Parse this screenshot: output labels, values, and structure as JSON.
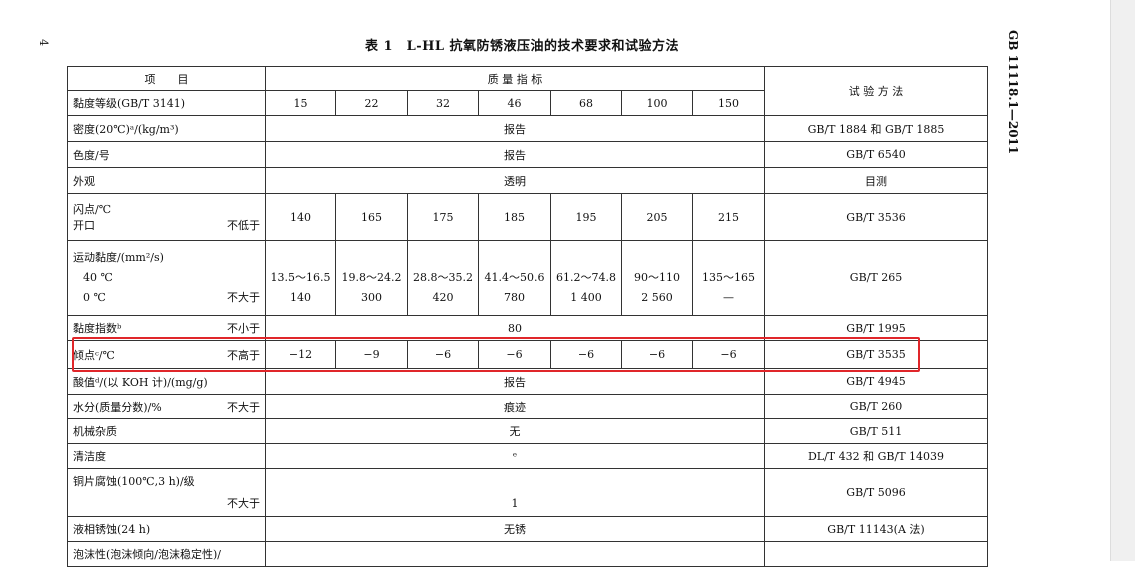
{
  "page_number": "4",
  "title": "表 1　L-HL 抗氧防锈液压油的技术要求和试验方法",
  "standard_id": "GB 11118.1—2011",
  "header": {
    "item": "项　　目",
    "quality": "质 量 指 标",
    "method": "试 验 方 法"
  },
  "grades_label": "黏度等级(GB/T 3141)",
  "grades": [
    "15",
    "22",
    "32",
    "46",
    "68",
    "100",
    "150"
  ],
  "rows": [
    {
      "label": "密度(20℃)ᵃ/(kg/m³)",
      "qual": "",
      "value": "报告",
      "method": "GB/T 1884 和 GB/T 1885"
    },
    {
      "label": "色度/号",
      "qual": "",
      "value": "报告",
      "method": "GB/T 6540"
    },
    {
      "label": "外观",
      "qual": "",
      "value": "透明",
      "method": "目测"
    }
  ],
  "flash": {
    "label": "闪点/℃",
    "sub": "开口",
    "qual": "不低于",
    "values": [
      "140",
      "165",
      "175",
      "185",
      "195",
      "205",
      "215"
    ],
    "method": "GB/T 3536"
  },
  "kv": {
    "label": "运动黏度/(mm²/s)",
    "t40": "40 ℃",
    "t0": "0 ℃",
    "qual": "不大于",
    "v40": [
      "13.5～16.5",
      "19.8～24.2",
      "28.8～35.2",
      "41.4～50.6",
      "61.2～74.8",
      "90～110",
      "135～165"
    ],
    "v0": [
      "140",
      "300",
      "420",
      "780",
      "1 400",
      "2 560",
      "—"
    ],
    "method": "GB/T 265"
  },
  "vi": {
    "label": "黏度指数ᵇ",
    "qual": "不小于",
    "value": "80",
    "method": "GB/T 1995"
  },
  "pour": {
    "label": "倾点ᶜ/℃",
    "qual": "不高于",
    "values": [
      "−12",
      "−9",
      "−6",
      "−6",
      "−6",
      "−6",
      "−6"
    ],
    "method": "GB/T 3535"
  },
  "rows2": [
    {
      "label": "酸值ᵈ/(以 KOH 计)/(mg/g)",
      "qual": "",
      "value": "报告",
      "method": "GB/T 4945"
    },
    {
      "label": "水分(质量分数)/%",
      "qual": "不大于",
      "value": "痕迹",
      "method": "GB/T 260"
    },
    {
      "label": "机械杂质",
      "qual": "",
      "value": "无",
      "method": "GB/T 511"
    },
    {
      "label": "清洁度",
      "qual": "",
      "value": "ᵉ",
      "method": "DL/T 432 和 GB/T 14039"
    }
  ],
  "copper": {
    "label": "铜片腐蚀(100℃,3 h)/级",
    "qual": "不大于",
    "value": "1",
    "method": "GB/T 5096"
  },
  "rust": {
    "label": "液相锈蚀(24 h)",
    "value": "无锈",
    "method": "GB/T 11143(A 法)"
  },
  "foam": {
    "label": "泡沫性(泡沫倾向/泡沫稳定性)/"
  },
  "highlight_color": "#e0262a"
}
